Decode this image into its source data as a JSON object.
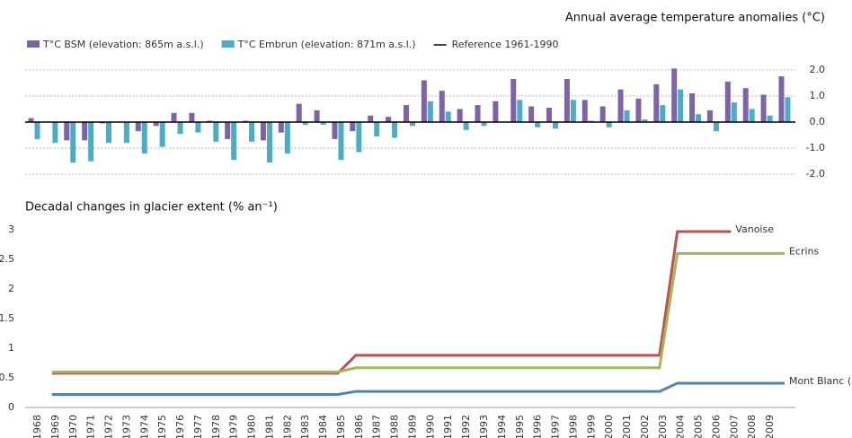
{
  "chart_data": [
    {
      "type": "bar",
      "title": "Annual average temperature anomalies (°C)",
      "series": [
        {
          "name": "T°C BSM (elevation: 865m a.s.l.)",
          "color": "#7e63a8",
          "values": [
            0.15,
            0.0,
            -0.7,
            -0.7,
            -0.05,
            0.0,
            -0.35,
            -0.15,
            0.35,
            0.35,
            0.05,
            -0.65,
            0.05,
            -0.7,
            -0.4,
            0.7,
            0.45,
            -0.65,
            -0.35,
            0.25,
            0.2,
            0.65,
            1.6,
            1.2,
            0.5,
            0.65,
            0.8,
            1.65,
            0.6,
            0.55,
            1.65,
            0.85,
            0.6,
            1.25,
            0.9,
            1.45,
            2.05,
            1.1,
            0.45,
            1.55,
            1.3,
            1.05,
            1.75
          ]
        },
        {
          "name": "T°C Embrun (elevation: 871m a.s.l.)",
          "color": "#4bacc6",
          "values": [
            -0.65,
            -0.8,
            -1.55,
            -1.5,
            -0.8,
            -0.8,
            -1.2,
            -0.95,
            -0.45,
            -0.4,
            -0.75,
            -1.45,
            -0.75,
            -1.55,
            -1.2,
            -0.1,
            -0.1,
            -1.45,
            -1.15,
            -0.55,
            -0.6,
            -0.15,
            0.8,
            0.4,
            -0.3,
            -0.15,
            0.0,
            0.85,
            -0.2,
            -0.25,
            0.85,
            0.05,
            -0.2,
            0.45,
            0.1,
            0.65,
            1.25,
            0.3,
            -0.35,
            0.75,
            0.5,
            0.25,
            0.95
          ]
        }
      ],
      "reference_line": {
        "name": "Reference 1961-1990",
        "color": "#000000",
        "value": 0
      },
      "ylim": [
        -2.2,
        2.2
      ],
      "yticks": [
        {
          "value": 2,
          "label": "2.0"
        },
        {
          "value": 1,
          "label": "1.0"
        },
        {
          "value": 0,
          "label": "0.0"
        },
        {
          "value": -1,
          "label": "-1.0"
        },
        {
          "value": -2,
          "label": "-2.0"
        }
      ],
      "grid": true,
      "legend": "top-left",
      "axis_side": "right"
    },
    {
      "type": "line",
      "title": "Decadal changes in glacier extent (% an⁻¹)",
      "categories": [
        "1968",
        "1969",
        "1970",
        "1971",
        "1972",
        "1973",
        "1974",
        "1975",
        "1976",
        "1977",
        "1978",
        "1979",
        "1980",
        "1981",
        "1982",
        "1983",
        "1984",
        "1985",
        "1986",
        "1987",
        "1988",
        "1989",
        "1990",
        "1991",
        "1992",
        "1993",
        "1994",
        "1995",
        "1996",
        "1997",
        "1998",
        "1999",
        "2000",
        "2001",
        "2002",
        "2003",
        "2004",
        "2005",
        "2006",
        "2007",
        "2008",
        "2009",
        null
      ],
      "series": [
        {
          "name": "Vanoise",
          "color": "#c0504d",
          "values": [
            null,
            0.58,
            0.58,
            0.58,
            0.58,
            0.58,
            0.58,
            0.58,
            0.58,
            0.58,
            0.58,
            0.58,
            0.58,
            0.58,
            0.58,
            0.58,
            0.58,
            0.58,
            0.88,
            0.88,
            0.88,
            0.88,
            0.88,
            0.88,
            0.88,
            0.88,
            0.88,
            0.88,
            0.88,
            0.88,
            0.88,
            0.88,
            0.88,
            0.88,
            0.88,
            0.88,
            2.97,
            2.97,
            2.97,
            2.97,
            null,
            null,
            null
          ]
        },
        {
          "name": "Ecrins",
          "color": "#9bbb59",
          "values": [
            null,
            0.6,
            0.6,
            0.6,
            0.6,
            0.6,
            0.6,
            0.6,
            0.6,
            0.6,
            0.6,
            0.6,
            0.6,
            0.6,
            0.6,
            0.6,
            0.6,
            0.6,
            0.67,
            0.67,
            0.67,
            0.67,
            0.67,
            0.67,
            0.67,
            0.67,
            0.67,
            0.67,
            0.67,
            0.67,
            0.67,
            0.67,
            0.67,
            0.67,
            0.67,
            0.67,
            2.6,
            2.6,
            2.6,
            2.6,
            2.6,
            2.6,
            2.6
          ]
        },
        {
          "name": "Mont Blanc (FR)",
          "color": "#4f81bd",
          "values": [
            null,
            0.22,
            0.22,
            0.22,
            0.22,
            0.22,
            0.22,
            0.22,
            0.22,
            0.22,
            0.22,
            0.22,
            0.22,
            0.22,
            0.22,
            0.22,
            0.22,
            0.22,
            0.27,
            0.27,
            0.27,
            0.27,
            0.27,
            0.27,
            0.27,
            0.27,
            0.27,
            0.27,
            0.27,
            0.27,
            0.27,
            0.27,
            0.27,
            0.27,
            0.27,
            0.27,
            0.41,
            0.41,
            0.41,
            0.41,
            0.41,
            0.41,
            0.41
          ]
        }
      ],
      "ylim": [
        0,
        3
      ],
      "yticks": [
        0,
        0.5,
        1,
        1.5,
        2,
        2.5,
        3
      ],
      "grid": false,
      "legend": "line-end",
      "axis_side": "left"
    }
  ]
}
